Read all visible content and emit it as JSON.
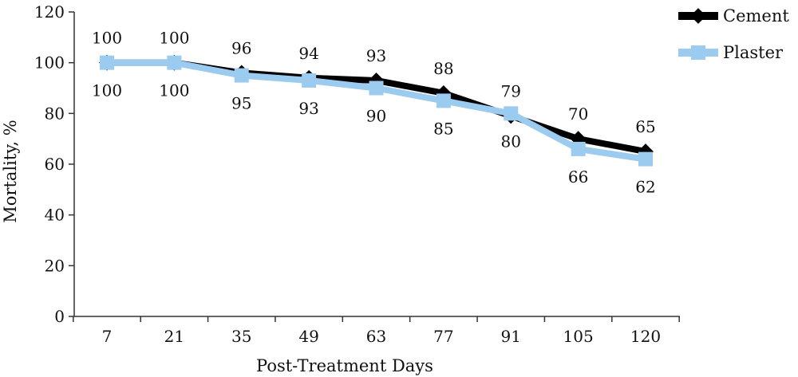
{
  "chart_data": {
    "type": "line",
    "title": "",
    "xlabel": "Post-Treatment Days",
    "ylabel": "Mortality, %",
    "categories": [
      "7",
      "21",
      "35",
      "49",
      "63",
      "77",
      "91",
      "105",
      "120"
    ],
    "ylim": [
      0,
      120
    ],
    "yticks": [
      "0",
      "20",
      "40",
      "60",
      "80",
      "100",
      "120"
    ],
    "grid": false,
    "legend_position": "top-right",
    "series": [
      {
        "name": "Cement",
        "values": [
          100,
          100,
          96,
          94,
          93,
          88,
          79,
          70,
          65
        ],
        "color": "#000000",
        "marker": "diamond",
        "label_position": "above"
      },
      {
        "name": "Plaster",
        "values": [
          100,
          100,
          95,
          93,
          90,
          85,
          80,
          66,
          62
        ],
        "color": "#9ccbf0",
        "marker": "square",
        "label_position": "below"
      }
    ]
  }
}
